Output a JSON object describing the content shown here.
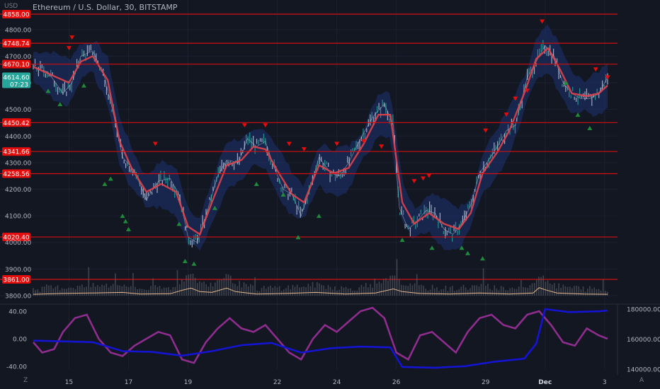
{
  "header": {
    "title": "Ethereum / U.S. Dollar, 30, BITSTAMP",
    "currency": "USD"
  },
  "footer": {
    "left_button": "Z",
    "right_button": "A"
  },
  "colors": {
    "background": "#131722",
    "level_line": "#d30f0f",
    "level_label_bg": "#e50c0c",
    "last_price_bg": "#26a69a",
    "band_fill": "#1e3a8a",
    "moving_average": "#e0434b",
    "up_marker": "#1f8a3a",
    "down_marker": "#e50c0c",
    "volume_ma": "#e0b48c",
    "oscillator": "#8e2d8e",
    "secondary_line": "#1414d2"
  },
  "chart_data": [
    {
      "type": "line",
      "title": "Ethereum / U.S. Dollar, 30, BITSTAMP",
      "ylabel": "USD",
      "ylim": [
        3780,
        4880
      ],
      "y_ticks": [
        3800,
        3900,
        4000,
        4100,
        4200,
        4300,
        4400,
        4500,
        4600,
        4700,
        4800
      ],
      "y_tick_labels": [
        "3800.00",
        "3900.00",
        "4000.00",
        "4100.00",
        "4200.00",
        "4300.00",
        "4400.00",
        "4500.00",
        "4600.00",
        "4700.00",
        "4800.00"
      ],
      "x_ticks": [
        {
          "label": "15",
          "day": 1.2
        },
        {
          "label": "17",
          "day": 3.2
        },
        {
          "label": "19",
          "day": 5.2
        },
        {
          "label": "22",
          "day": 8.2
        },
        {
          "label": "24",
          "day": 10.2
        },
        {
          "label": "26",
          "day": 12.2
        },
        {
          "label": "29",
          "day": 15.2
        },
        {
          "label": "Dec",
          "day": 17.2
        },
        {
          "label": "3",
          "day": 19.2
        }
      ],
      "support_resistance_levels": [
        {
          "value": 4858.0,
          "label": "4858.00"
        },
        {
          "value": 4748.74,
          "label": "4748.74"
        },
        {
          "value": 4670.1,
          "label": "4670.10"
        },
        {
          "value": 4450.42,
          "label": "4450.42"
        },
        {
          "value": 4341.66,
          "label": "4341.66"
        },
        {
          "value": 4258.56,
          "label": "4258.56"
        },
        {
          "value": 4020.4,
          "label": "4020.40"
        },
        {
          "value": 3861.0,
          "label": "3861.00"
        }
      ],
      "last_price": {
        "value": 4614.6,
        "label": "4614.60",
        "countdown": "07:23"
      },
      "price_series": [
        [
          0.0,
          4660
        ],
        [
          0.5,
          4640
        ],
        [
          1.0,
          4560
        ],
        [
          1.3,
          4600
        ],
        [
          1.6,
          4700
        ],
        [
          2.0,
          4720
        ],
        [
          2.4,
          4620
        ],
        [
          2.7,
          4480
        ],
        [
          3.0,
          4320
        ],
        [
          3.4,
          4270
        ],
        [
          3.8,
          4160
        ],
        [
          4.2,
          4230
        ],
        [
          4.6,
          4240
        ],
        [
          4.9,
          4180
        ],
        [
          5.2,
          4020
        ],
        [
          5.5,
          4000
        ],
        [
          5.8,
          4100
        ],
        [
          6.2,
          4250
        ],
        [
          6.5,
          4310
        ],
        [
          6.9,
          4300
        ],
        [
          7.2,
          4390
        ],
        [
          7.5,
          4360
        ],
        [
          7.8,
          4380
        ],
        [
          8.1,
          4280
        ],
        [
          8.4,
          4200
        ],
        [
          8.7,
          4180
        ],
        [
          9.0,
          4100
        ],
        [
          9.3,
          4200
        ],
        [
          9.6,
          4320
        ],
        [
          10.0,
          4260
        ],
        [
          10.3,
          4250
        ],
        [
          10.6,
          4300
        ],
        [
          11.0,
          4390
        ],
        [
          11.4,
          4470
        ],
        [
          11.8,
          4520
        ],
        [
          12.1,
          4440
        ],
        [
          12.3,
          4130
        ],
        [
          12.6,
          4050
        ],
        [
          12.9,
          4080
        ],
        [
          13.2,
          4120
        ],
        [
          13.5,
          4110
        ],
        [
          13.8,
          4050
        ],
        [
          14.1,
          4030
        ],
        [
          14.4,
          4070
        ],
        [
          14.7,
          4140
        ],
        [
          15.0,
          4260
        ],
        [
          15.3,
          4310
        ],
        [
          15.6,
          4360
        ],
        [
          15.9,
          4420
        ],
        [
          16.2,
          4440
        ],
        [
          16.6,
          4620
        ],
        [
          16.9,
          4680
        ],
        [
          17.2,
          4740
        ],
        [
          17.5,
          4700
        ],
        [
          17.8,
          4600
        ],
        [
          18.1,
          4560
        ],
        [
          18.4,
          4540
        ],
        [
          18.7,
          4540
        ],
        [
          19.0,
          4560
        ],
        [
          19.3,
          4620
        ]
      ],
      "moving_average": [
        [
          0.0,
          4660
        ],
        [
          0.6,
          4630
        ],
        [
          1.2,
          4600
        ],
        [
          1.6,
          4680
        ],
        [
          2.0,
          4700
        ],
        [
          2.5,
          4610
        ],
        [
          2.9,
          4380
        ],
        [
          3.3,
          4280
        ],
        [
          3.8,
          4190
        ],
        [
          4.3,
          4220
        ],
        [
          4.8,
          4190
        ],
        [
          5.2,
          4060
        ],
        [
          5.6,
          4030
        ],
        [
          6.0,
          4150
        ],
        [
          6.5,
          4290
        ],
        [
          7.0,
          4310
        ],
        [
          7.4,
          4360
        ],
        [
          7.8,
          4350
        ],
        [
          8.2,
          4270
        ],
        [
          8.7,
          4180
        ],
        [
          9.1,
          4150
        ],
        [
          9.6,
          4290
        ],
        [
          10.1,
          4260
        ],
        [
          10.6,
          4280
        ],
        [
          11.1,
          4370
        ],
        [
          11.6,
          4480
        ],
        [
          12.0,
          4480
        ],
        [
          12.4,
          4150
        ],
        [
          12.8,
          4070
        ],
        [
          13.3,
          4110
        ],
        [
          13.8,
          4070
        ],
        [
          14.3,
          4050
        ],
        [
          14.7,
          4110
        ],
        [
          15.1,
          4260
        ],
        [
          15.6,
          4340
        ],
        [
          16.0,
          4420
        ],
        [
          16.5,
          4560
        ],
        [
          16.9,
          4690
        ],
        [
          17.3,
          4730
        ],
        [
          17.7,
          4650
        ],
        [
          18.1,
          4560
        ],
        [
          18.6,
          4550
        ],
        [
          19.0,
          4560
        ],
        [
          19.3,
          4590
        ]
      ],
      "sell_markers": [
        [
          1.3,
          4770
        ],
        [
          1.2,
          4730
        ],
        [
          4.1,
          4370
        ],
        [
          7.1,
          4440
        ],
        [
          7.8,
          4440
        ],
        [
          8.6,
          4370
        ],
        [
          9.1,
          4350
        ],
        [
          10.2,
          4370
        ],
        [
          11.1,
          4380
        ],
        [
          11.7,
          4360
        ],
        [
          12.8,
          4230
        ],
        [
          13.1,
          4240
        ],
        [
          13.3,
          4250
        ],
        [
          15.2,
          4420
        ],
        [
          15.9,
          4480
        ],
        [
          16.2,
          4540
        ],
        [
          16.6,
          4570
        ],
        [
          17.1,
          4830
        ],
        [
          18.9,
          4650
        ],
        [
          19.3,
          4620
        ]
      ],
      "buy_markers": [
        [
          0.5,
          4570
        ],
        [
          0.9,
          4520
        ],
        [
          1.7,
          4590
        ],
        [
          2.4,
          4220
        ],
        [
          2.6,
          4240
        ],
        [
          3.0,
          4100
        ],
        [
          3.1,
          4080
        ],
        [
          3.2,
          4050
        ],
        [
          4.9,
          4070
        ],
        [
          5.1,
          3930
        ],
        [
          5.4,
          3920
        ],
        [
          6.1,
          4130
        ],
        [
          7.5,
          4220
        ],
        [
          8.4,
          4180
        ],
        [
          8.9,
          4020
        ],
        [
          9.6,
          4100
        ],
        [
          12.4,
          4010
        ],
        [
          13.4,
          3980
        ],
        [
          14.4,
          3980
        ],
        [
          14.6,
          3960
        ],
        [
          15.1,
          3940
        ],
        [
          17.9,
          4600
        ],
        [
          18.3,
          4480
        ],
        [
          18.7,
          4430
        ]
      ]
    },
    {
      "type": "bar",
      "name": "volume",
      "volume_ma": [
        [
          0.0,
          3805
        ],
        [
          1.0,
          3808
        ],
        [
          2.0,
          3810
        ],
        [
          3.0,
          3812
        ],
        [
          3.6,
          3806
        ],
        [
          4.6,
          3807
        ],
        [
          5.0,
          3820
        ],
        [
          5.3,
          3828
        ],
        [
          5.6,
          3815
        ],
        [
          6.0,
          3812
        ],
        [
          6.5,
          3828
        ],
        [
          6.8,
          3815
        ],
        [
          7.5,
          3806
        ],
        [
          8.5,
          3808
        ],
        [
          9.5,
          3812
        ],
        [
          10.5,
          3806
        ],
        [
          11.5,
          3810
        ],
        [
          12.1,
          3825
        ],
        [
          12.4,
          3815
        ],
        [
          13.0,
          3808
        ],
        [
          14.0,
          3806
        ],
        [
          15.0,
          3810
        ],
        [
          16.0,
          3806
        ],
        [
          16.8,
          3810
        ],
        [
          17.0,
          3830
        ],
        [
          17.2,
          3822
        ],
        [
          17.6,
          3810
        ],
        [
          18.5,
          3806
        ],
        [
          19.3,
          3805
        ]
      ]
    },
    {
      "type": "line",
      "name": "oscillator",
      "y_ticks": [
        40,
        0,
        -40
      ],
      "y_tick_labels": [
        "40.00",
        "0.00",
        "-40.00"
      ],
      "ylim": [
        -60,
        60
      ],
      "right_axis_ticks": [
        180000,
        160000,
        140000
      ],
      "right_axis_labels": [
        "180000.00",
        "160000.00",
        "140000.00"
      ],
      "right_axis_ylim": [
        133000,
        185000
      ],
      "oscillator_series": [
        [
          0.0,
          -5
        ],
        [
          0.3,
          -20
        ],
        [
          0.7,
          -15
        ],
        [
          1.0,
          10
        ],
        [
          1.4,
          30
        ],
        [
          1.8,
          35
        ],
        [
          2.2,
          0
        ],
        [
          2.6,
          -20
        ],
        [
          3.0,
          -25
        ],
        [
          3.4,
          -10
        ],
        [
          3.8,
          0
        ],
        [
          4.2,
          10
        ],
        [
          4.6,
          5
        ],
        [
          5.0,
          -30
        ],
        [
          5.4,
          -35
        ],
        [
          5.8,
          -5
        ],
        [
          6.2,
          15
        ],
        [
          6.6,
          30
        ],
        [
          7.0,
          15
        ],
        [
          7.4,
          10
        ],
        [
          7.8,
          20
        ],
        [
          8.2,
          0
        ],
        [
          8.6,
          -20
        ],
        [
          9.0,
          -30
        ],
        [
          9.4,
          0
        ],
        [
          9.8,
          20
        ],
        [
          10.2,
          10
        ],
        [
          10.6,
          25
        ],
        [
          11.0,
          40
        ],
        [
          11.4,
          45
        ],
        [
          11.8,
          30
        ],
        [
          12.2,
          -20
        ],
        [
          12.6,
          -30
        ],
        [
          13.0,
          5
        ],
        [
          13.4,
          10
        ],
        [
          13.8,
          -5
        ],
        [
          14.2,
          -20
        ],
        [
          14.6,
          10
        ],
        [
          15.0,
          30
        ],
        [
          15.4,
          35
        ],
        [
          15.8,
          20
        ],
        [
          16.2,
          15
        ],
        [
          16.6,
          35
        ],
        [
          17.0,
          40
        ],
        [
          17.4,
          20
        ],
        [
          17.8,
          -5
        ],
        [
          18.2,
          -10
        ],
        [
          18.6,
          15
        ],
        [
          19.0,
          5
        ],
        [
          19.3,
          0
        ]
      ],
      "secondary_series": [
        [
          0.0,
          159000
        ],
        [
          1.0,
          158500
        ],
        [
          2.0,
          158000
        ],
        [
          3.0,
          152000
        ],
        [
          4.0,
          151500
        ],
        [
          5.0,
          149000
        ],
        [
          6.0,
          152000
        ],
        [
          7.0,
          156000
        ],
        [
          8.0,
          157500
        ],
        [
          9.0,
          151000
        ],
        [
          10.0,
          154000
        ],
        [
          11.0,
          155000
        ],
        [
          12.0,
          154500
        ],
        [
          12.4,
          141500
        ],
        [
          13.5,
          141000
        ],
        [
          14.5,
          142000
        ],
        [
          15.5,
          145000
        ],
        [
          16.5,
          147000
        ],
        [
          16.9,
          157000
        ],
        [
          17.2,
          180000
        ],
        [
          18.0,
          178000
        ],
        [
          19.0,
          178500
        ],
        [
          19.3,
          179000
        ]
      ]
    }
  ]
}
